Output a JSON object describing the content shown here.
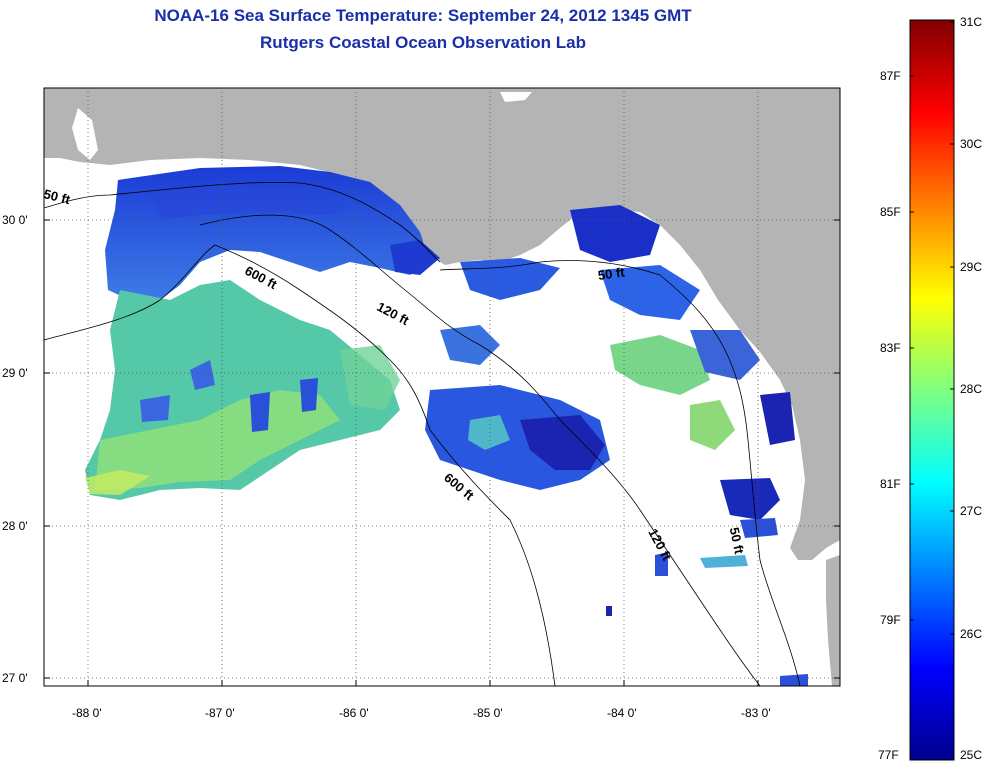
{
  "title": "NOAA-16 Sea Surface Temperature:  September 24, 2012 1345 GMT",
  "subtitle": "Rutgers Coastal Ocean Observation Lab",
  "lat_labels": [
    "30 0'",
    "29 0'",
    "28 0'",
    "27 0'"
  ],
  "lon_labels": [
    "-88 0'",
    "-87 0'",
    "-86 0'",
    "-85 0'",
    "-84 0'",
    "-83 0'"
  ],
  "contours": [
    "50 ft",
    "600 ft",
    "120 ft",
    "50 ft",
    "600 ft",
    "120 ft",
    "50 ft"
  ],
  "colorbar": {
    "celsius": [
      "31C",
      "30C",
      "29C",
      "28C",
      "27C",
      "26C",
      "25C"
    ],
    "fahrenheit": [
      "87F",
      "85F",
      "83F",
      "81F",
      "79F",
      "77F"
    ]
  },
  "colors": {
    "land": "#b4b4b4",
    "title": "#1a2fa8"
  }
}
